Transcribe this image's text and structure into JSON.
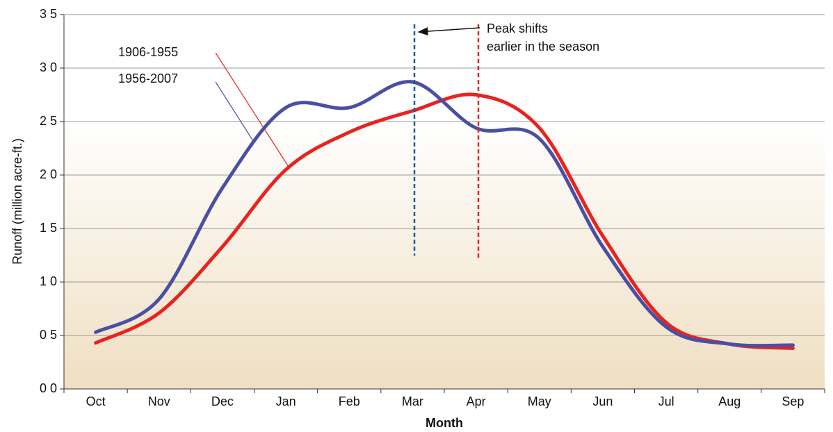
{
  "chart_data": {
    "type": "line",
    "y_label": "Runoff (million acre-ft.)",
    "x_label": "Month",
    "categories": [
      "Oct",
      "Nov",
      "Dec",
      "Jan",
      "Feb",
      "Mar",
      "Apr",
      "May",
      "Jun",
      "Jul",
      "Aug",
      "Sep"
    ],
    "series": [
      {
        "name": "1906-1955",
        "color": "#e8231f",
        "values": [
          0.43,
          0.71,
          1.33,
          2.05,
          2.4,
          2.6,
          2.75,
          2.44,
          1.43,
          0.62,
          0.42,
          0.38
        ]
      },
      {
        "name": "1956-2007",
        "color": "#4a4fa3",
        "values": [
          0.53,
          0.84,
          1.88,
          2.63,
          2.63,
          2.87,
          2.44,
          2.34,
          1.33,
          0.58,
          0.42,
          0.41
        ]
      }
    ],
    "ylim": [
      0,
      3.5
    ],
    "yticks": [
      {
        "value": 0,
        "label": "0 0"
      },
      {
        "value": 0.5,
        "label": "0 5"
      },
      {
        "value": 1,
        "label": "1 0"
      },
      {
        "value": 1.5,
        "label": "1 5"
      },
      {
        "value": 2,
        "label": "2 0"
      },
      {
        "value": 2.5,
        "label": "2 5"
      },
      {
        "value": 3,
        "label": "3 0"
      },
      {
        "value": 3.5,
        "label": "3 5"
      }
    ],
    "grid": true,
    "annotation": [
      "Peak shifts",
      "earlier in the season"
    ]
  }
}
